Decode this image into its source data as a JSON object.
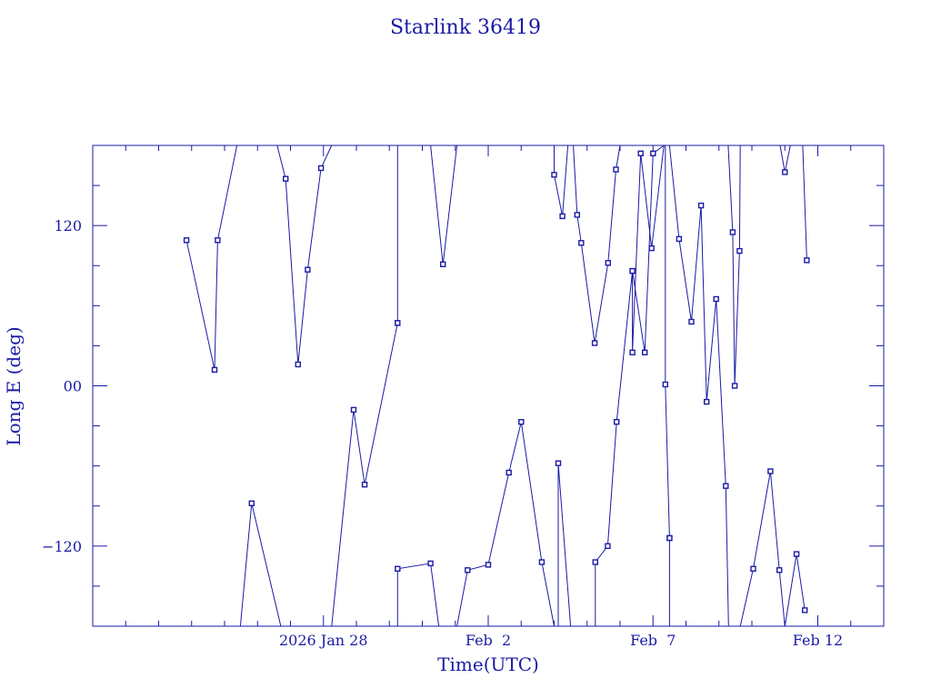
{
  "chart_data": {
    "type": "line",
    "title": "Starlink 36419",
    "xlabel": "Time(UTC)",
    "ylabel": "Long E (deg)",
    "color": "#1a1aa6",
    "xlim": [
      "2026-01-21T00:00",
      "2026-02-14T00:00"
    ],
    "ylim": [
      -180,
      180
    ],
    "x_ticks": [
      {
        "value": "2026-01-28",
        "label": "2026 Jan 28"
      },
      {
        "value": "2026-02-02",
        "label": "Feb  2"
      },
      {
        "value": "2026-02-07",
        "label": "Feb  7"
      },
      {
        "value": "2026-02-12",
        "label": "Feb 12"
      }
    ],
    "y_ticks": [
      {
        "value": 120,
        "label": "120"
      },
      {
        "value": 0,
        "label": "00"
      },
      {
        "value": -120,
        "label": "−120"
      }
    ],
    "series": [
      {
        "x": [
          "2026-01-23T20:15",
          "2026-01-24T16:45",
          "2026-01-24T19:00",
          "2026-01-25T09:00"
        ],
        "y": [
          109,
          12,
          109,
          180
        ]
      },
      {
        "x": [
          "2026-01-25T11:30",
          "2026-01-25T19:45",
          "2026-01-26T17:00"
        ],
        "y": [
          -180,
          -88,
          -180
        ]
      },
      {
        "x": [
          "2026-01-26T14:15",
          "2026-01-26T20:30",
          "2026-01-27T05:30",
          "2026-01-27T12:30",
          "2026-01-27T22:15",
          "2026-01-28T06:00"
        ],
        "y": [
          180,
          155,
          16,
          87,
          163,
          180
        ]
      },
      {
        "x": [
          "2026-01-28T06:00",
          "2026-01-28T22:00",
          "2026-01-29T06:00",
          "2026-01-30T06:00"
        ],
        "y": [
          -180,
          -18,
          -74,
          47
        ]
      },
      {
        "x": [
          "2026-01-30T06:00",
          "2026-01-30T06:00"
        ],
        "y": [
          47,
          180
        ]
      },
      {
        "x": [
          "2026-01-30T06:00",
          "2026-01-30T06:00",
          "2026-01-31T06:00",
          "2026-01-31T12:00"
        ],
        "y": [
          -180,
          -137,
          -133,
          -180
        ]
      },
      {
        "x": [
          "2026-01-31T06:00",
          "2026-01-31T15:00",
          "2026-02-01T01:15"
        ],
        "y": [
          180,
          91,
          180
        ]
      },
      {
        "x": [
          "2026-02-01T01:15",
          "2026-02-01T09:00",
          "2026-02-02T00:00",
          "2026-02-02T15:00",
          "2026-02-03T00:00",
          "2026-02-03T15:00",
          "2026-02-04T00:00"
        ],
        "y": [
          -180,
          -138,
          -134,
          -65,
          -27,
          -132,
          -180
        ]
      },
      {
        "x": [
          "2026-02-04T00:00",
          "2026-02-04T00:00",
          "2026-02-04T06:00",
          "2026-02-04T10:00"
        ],
        "y": [
          180,
          158,
          127,
          180
        ]
      },
      {
        "x": [
          "2026-02-04T03:00",
          "2026-02-04T03:00",
          "2026-02-04T12:00"
        ],
        "y": [
          -180,
          -58,
          -180
        ]
      },
      {
        "x": [
          "2026-02-04T14:00",
          "2026-02-04T16:45",
          "2026-02-04T19:45",
          "2026-02-05T05:30",
          "2026-02-05T15:15",
          "2026-02-05T21:00",
          "2026-02-06T00:00"
        ],
        "y": [
          180,
          128,
          107,
          32,
          92,
          162,
          180
        ]
      },
      {
        "x": [
          "2026-02-05T06:00",
          "2026-02-05T06:00",
          "2026-02-05T15:00",
          "2026-02-05T21:30",
          "2026-02-06T09:00",
          "2026-02-06T18:00",
          "2026-02-07T00:00",
          "2026-02-07T08:00"
        ],
        "y": [
          -180,
          -132,
          -120,
          -27,
          86,
          25,
          174,
          180
        ]
      },
      {
        "x": [
          "2026-02-06T09:00",
          "2026-02-06T09:00",
          "2026-02-06T15:00",
          "2026-02-06T23:00",
          "2026-02-07T08:00",
          "2026-02-07T12:00"
        ],
        "y": [
          86,
          25,
          174,
          103,
          180,
          180
        ]
      },
      {
        "x": [
          "2026-02-07T12:00",
          "2026-02-07T19:00",
          "2026-02-08T04:00",
          "2026-02-08T11:00",
          "2026-02-08T15:00",
          "2026-02-08T22:00",
          "2026-02-09T05:00",
          "2026-02-09T07:00"
        ],
        "y": [
          180,
          110,
          48,
          135,
          -12,
          65,
          -75,
          -180
        ]
      },
      {
        "x": [
          "2026-02-07T09:00",
          "2026-02-07T09:00",
          "2026-02-07T12:00"
        ],
        "y": [
          180,
          1,
          -114
        ]
      },
      {
        "x": [
          "2026-02-07T12:00",
          "2026-02-07T12:00"
        ],
        "y": [
          -114,
          -180
        ]
      },
      {
        "x": [
          "2026-02-09T06:45",
          "2026-02-09T10:00",
          "2026-02-09T11:30",
          "2026-02-09T15:00",
          "2026-02-09T15:30"
        ],
        "y": [
          180,
          115,
          0,
          101,
          180
        ]
      },
      {
        "x": [
          "2026-02-09T15:30",
          "2026-02-10T01:00",
          "2026-02-10T13:30",
          "2026-02-10T20:00",
          "2026-02-11T00:00"
        ],
        "y": [
          -180,
          -137,
          -64,
          -138,
          -180
        ]
      },
      {
        "x": [
          "2026-02-10T20:30",
          "2026-02-11T00:00",
          "2026-02-11T04:00"
        ],
        "y": [
          180,
          160,
          180
        ]
      },
      {
        "x": [
          "2026-02-11T00:00",
          "2026-02-11T08:30",
          "2026-02-11T14:30"
        ],
        "y": [
          -180,
          -126,
          -168
        ]
      },
      {
        "x": [
          "2026-02-11T08:30",
          "2026-02-11T13:00",
          "2026-02-11T16:00"
        ],
        "y": [
          180,
          180,
          94
        ]
      }
    ]
  }
}
